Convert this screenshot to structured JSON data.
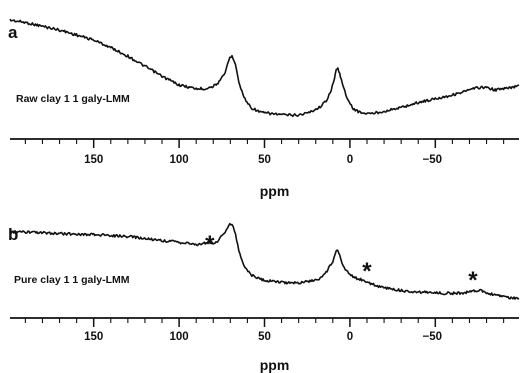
{
  "chart_data": [
    {
      "type": "line",
      "panel": "a",
      "sample_label": "Raw clay 1 1 galy-LMM",
      "xlabel": "ppm",
      "x_reversed": true,
      "xlim": [
        199,
        -99
      ],
      "x_ticks": [
        150,
        100,
        50,
        0,
        -50
      ],
      "x_tick_labels": [
        "150",
        "100",
        "50",
        "0",
        "−50"
      ],
      "y_axis_shown": false,
      "series": [
        {
          "x": [
            199,
            190,
            180,
            170,
            160,
            150,
            140,
            130,
            120,
            110,
            100,
            90,
            85,
            80,
            76,
            73,
            71,
            69,
            67,
            65,
            62,
            58,
            52,
            45,
            38,
            30,
            24,
            18,
            14,
            11,
            9,
            8,
            7,
            6,
            5,
            3,
            1,
            -2,
            -6,
            -12,
            -20,
            -30,
            -40,
            -50,
            -60,
            -70,
            -75,
            -80,
            -85,
            -90,
            -95,
            -99
          ],
          "y": [
            0.92,
            0.9,
            0.87,
            0.84,
            0.8,
            0.76,
            0.7,
            0.63,
            0.55,
            0.47,
            0.4,
            0.37,
            0.37,
            0.39,
            0.43,
            0.5,
            0.6,
            0.64,
            0.57,
            0.42,
            0.3,
            0.22,
            0.18,
            0.17,
            0.16,
            0.16,
            0.18,
            0.22,
            0.27,
            0.36,
            0.45,
            0.52,
            0.53,
            0.5,
            0.44,
            0.35,
            0.27,
            0.21,
            0.18,
            0.17,
            0.19,
            0.22,
            0.26,
            0.29,
            0.32,
            0.36,
            0.38,
            0.38,
            0.36,
            0.37,
            0.38,
            0.4
          ]
        }
      ]
    },
    {
      "type": "line",
      "panel": "b",
      "sample_label": "Pure clay 1 1 galy-LMM",
      "xlabel": "ppm",
      "x_reversed": true,
      "xlim": [
        199,
        -99
      ],
      "x_ticks": [
        150,
        100,
        50,
        0,
        -50
      ],
      "x_tick_labels": [
        "150",
        "100",
        "50",
        "0",
        "−50"
      ],
      "y_axis_shown": false,
      "annotations": [
        {
          "text": "*",
          "x": 82
        },
        {
          "text": "*",
          "x": -10
        },
        {
          "text": "*",
          "x": -72
        }
      ],
      "series": [
        {
          "x": [
            199,
            185,
            170,
            150,
            130,
            115,
            105,
            95,
            88,
            83,
            79,
            76,
            73,
            71,
            69,
            67,
            65,
            62,
            58,
            52,
            45,
            38,
            30,
            24,
            18,
            14,
            10,
            8,
            7,
            6,
            4,
            2,
            0,
            -3,
            -8,
            -15,
            -25,
            -35,
            -45,
            -55,
            -62,
            -68,
            -72,
            -76,
            -80,
            -86,
            -92,
            -99
          ],
          "y": [
            0.82,
            0.81,
            0.8,
            0.79,
            0.77,
            0.74,
            0.72,
            0.7,
            0.69,
            0.71,
            0.7,
            0.75,
            0.82,
            0.89,
            0.9,
            0.8,
            0.62,
            0.47,
            0.38,
            0.33,
            0.31,
            0.3,
            0.3,
            0.31,
            0.34,
            0.4,
            0.52,
            0.62,
            0.63,
            0.58,
            0.48,
            0.42,
            0.39,
            0.35,
            0.32,
            0.27,
            0.23,
            0.21,
            0.2,
            0.19,
            0.19,
            0.2,
            0.22,
            0.22,
            0.2,
            0.17,
            0.15,
            0.14
          ]
        }
      ]
    }
  ]
}
